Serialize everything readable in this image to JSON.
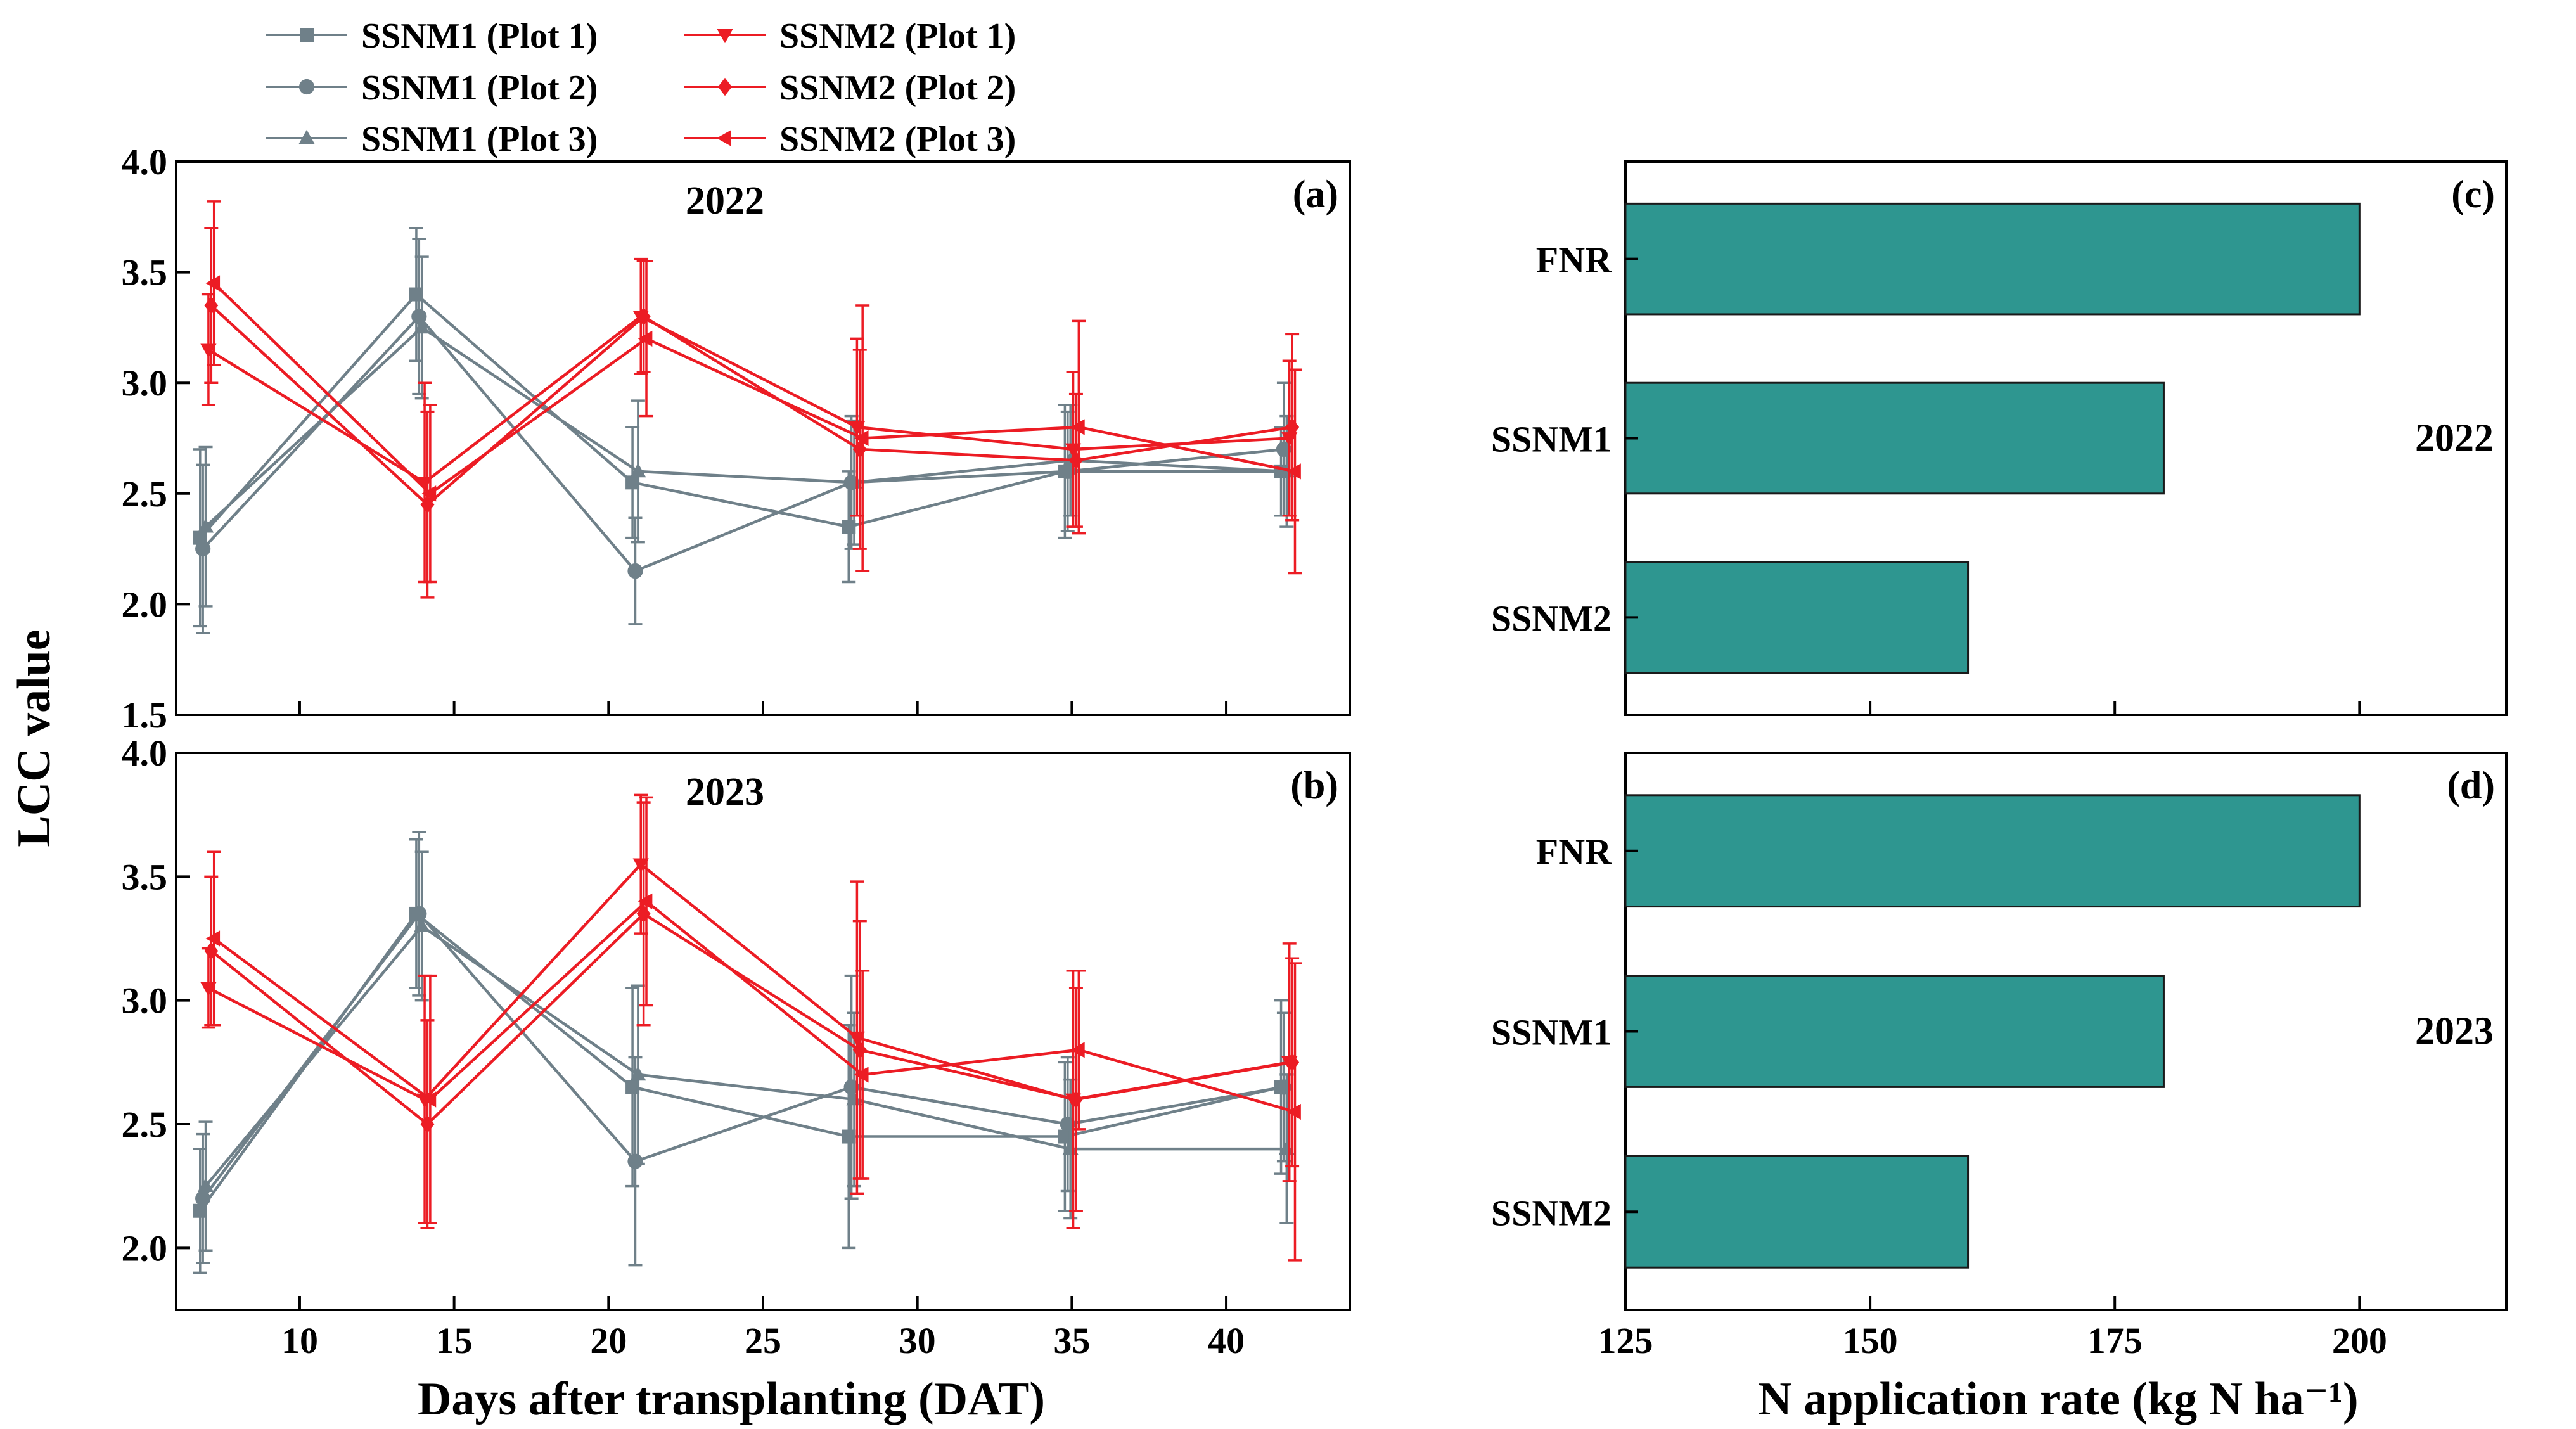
{
  "colors": {
    "ssnm1": "#6F8089",
    "ssnm2": "#EC1C24",
    "bar_fill": "#2E9690",
    "bar_stroke": "#1A1A1A"
  },
  "shared": {
    "ylabel": "LCC value",
    "xlabel_left": "Days after transplanting (DAT)",
    "xlabel_right": "N application rate (kg N ha⁻¹)"
  },
  "legend": [
    {
      "label": "SSNM1 (Plot 1)",
      "group": "ssnm1",
      "marker": "square"
    },
    {
      "label": "SSNM1 (Plot 2)",
      "group": "ssnm1",
      "marker": "circle"
    },
    {
      "label": "SSNM1 (Plot 3)",
      "group": "ssnm1",
      "marker": "triangle-up"
    },
    {
      "label": "SSNM2 (Plot 1)",
      "group": "ssnm2",
      "marker": "triangle-down"
    },
    {
      "label": "SSNM2 (Plot 2)",
      "group": "ssnm2",
      "marker": "diamond"
    },
    {
      "label": "SSNM2 (Plot 3)",
      "group": "ssnm2",
      "marker": "triangle-left"
    }
  ],
  "chart_data": [
    {
      "id": "a",
      "type": "line",
      "panel_label": "(a)",
      "year_label": "2022",
      "x": [
        7,
        14,
        21,
        28,
        35,
        42
      ],
      "xlim": [
        6,
        44
      ],
      "ylim": [
        1.5,
        4.0
      ],
      "xticks": [],
      "yticks": [
        "1.5",
        "2.0",
        "2.5",
        "3.0",
        "3.5",
        "4.0"
      ],
      "series": [
        {
          "name": "SSNM1 (Plot 1)",
          "values": [
            2.3,
            3.4,
            2.55,
            2.35,
            2.6,
            2.6
          ],
          "err": [
            0.4,
            0.3,
            0.25,
            0.25,
            0.3,
            0.2
          ]
        },
        {
          "name": "SSNM1 (Plot 2)",
          "values": [
            2.25,
            3.3,
            2.15,
            2.55,
            2.6,
            2.7
          ],
          "err": [
            0.38,
            0.35,
            0.24,
            0.3,
            0.27,
            0.3
          ]
        },
        {
          "name": "SSNM1 (Plot 3)",
          "values": [
            2.35,
            3.25,
            2.6,
            2.55,
            2.65,
            2.6
          ],
          "err": [
            0.36,
            0.32,
            0.32,
            0.28,
            0.25,
            0.25
          ]
        },
        {
          "name": "SSNM2 (Plot 1)",
          "values": [
            3.15,
            2.55,
            3.3,
            2.8,
            2.7,
            2.75
          ],
          "err": [
            0.25,
            0.45,
            0.26,
            0.4,
            0.35,
            0.35
          ]
        },
        {
          "name": "SSNM2 (Plot 2)",
          "values": [
            3.35,
            2.45,
            3.3,
            2.7,
            2.65,
            2.8
          ],
          "err": [
            0.35,
            0.42,
            0.25,
            0.45,
            0.3,
            0.42
          ]
        },
        {
          "name": "SSNM2 (Plot 3)",
          "values": [
            3.45,
            2.5,
            3.2,
            2.75,
            2.8,
            2.6
          ],
          "err": [
            0.37,
            0.4,
            0.35,
            0.6,
            0.48,
            0.46
          ]
        }
      ]
    },
    {
      "id": "b",
      "type": "line",
      "panel_label": "(b)",
      "year_label": "2023",
      "x": [
        7,
        14,
        21,
        28,
        35,
        42
      ],
      "xlim": [
        6,
        44
      ],
      "ylim": [
        1.75,
        4.0
      ],
      "xticks": [
        "10",
        "15",
        "20",
        "25",
        "30",
        "35",
        "40"
      ],
      "yticks": [
        "2.0",
        "2.5",
        "3.0",
        "3.5",
        "4.0"
      ],
      "series": [
        {
          "name": "SSNM1 (Plot 1)",
          "values": [
            2.15,
            3.35,
            2.65,
            2.45,
            2.45,
            2.65
          ],
          "err": [
            0.25,
            0.3,
            0.4,
            0.45,
            0.3,
            0.35
          ]
        },
        {
          "name": "SSNM1 (Plot 2)",
          "values": [
            2.2,
            3.35,
            2.35,
            2.65,
            2.5,
            2.65
          ],
          "err": [
            0.26,
            0.33,
            0.42,
            0.45,
            0.27,
            0.3
          ]
        },
        {
          "name": "SSNM1 (Plot 3)",
          "values": [
            2.25,
            3.3,
            2.7,
            2.6,
            2.4,
            2.4
          ],
          "err": [
            0.26,
            0.3,
            0.36,
            0.35,
            0.28,
            0.3
          ]
        },
        {
          "name": "SSNM2 (Plot 1)",
          "values": [
            3.05,
            2.6,
            3.55,
            2.85,
            2.6,
            2.75
          ],
          "err": [
            0.16,
            0.5,
            0.28,
            0.63,
            0.52,
            0.48
          ]
        },
        {
          "name": "SSNM2 (Plot 2)",
          "values": [
            3.2,
            2.5,
            3.35,
            2.8,
            2.6,
            2.75
          ],
          "err": [
            0.3,
            0.42,
            0.45,
            0.52,
            0.45,
            0.42
          ]
        },
        {
          "name": "SSNM2 (Plot 3)",
          "values": [
            3.25,
            2.6,
            3.4,
            2.7,
            2.8,
            2.55
          ],
          "err": [
            0.35,
            0.5,
            0.42,
            0.42,
            0.32,
            0.6
          ]
        }
      ]
    },
    {
      "id": "c",
      "type": "bar",
      "orientation": "horizontal",
      "panel_label": "(c)",
      "year_label": "2022",
      "categories": [
        "FNR",
        "SSNM1",
        "SSNM2"
      ],
      "values": [
        200,
        180,
        160
      ],
      "xlim": [
        125,
        215
      ],
      "xticks": []
    },
    {
      "id": "d",
      "type": "bar",
      "orientation": "horizontal",
      "panel_label": "(d)",
      "year_label": "2023",
      "categories": [
        "FNR",
        "SSNM1",
        "SSNM2"
      ],
      "values": [
        200,
        180,
        160
      ],
      "xlim": [
        125,
        215
      ],
      "xticks": [
        "125",
        "150",
        "175",
        "200"
      ]
    }
  ]
}
